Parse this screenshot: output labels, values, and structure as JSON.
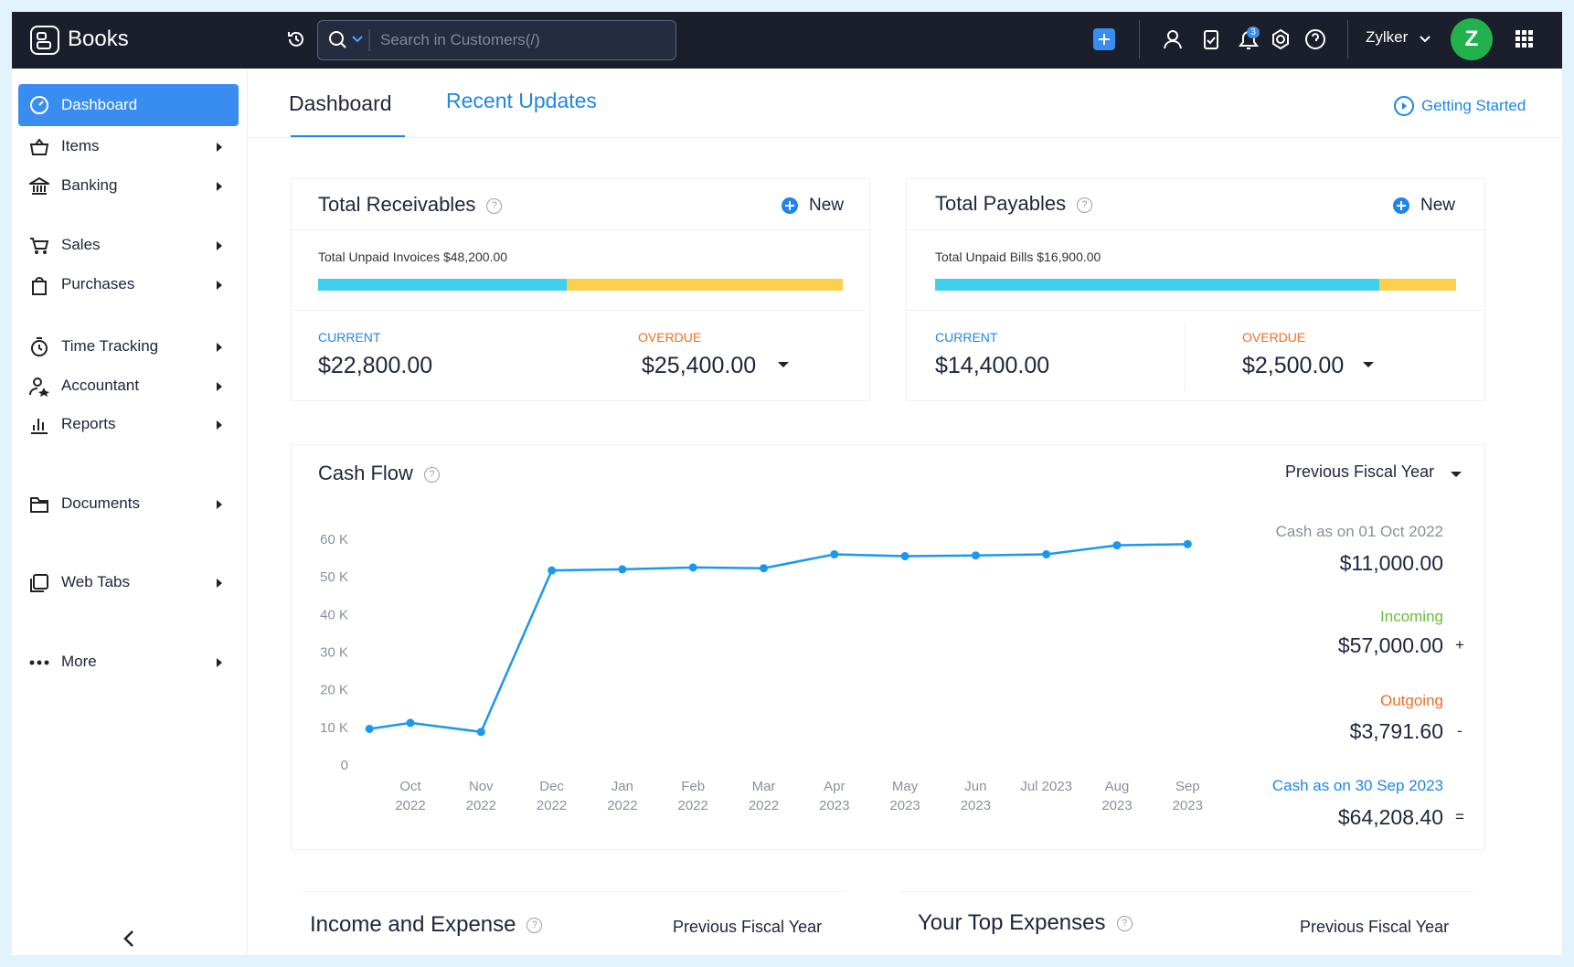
{
  "header": {
    "brand": "Books",
    "search_placeholder": "Search in Customers(/)",
    "badge": "3",
    "org": "Zylker",
    "avatar": "Z"
  },
  "sidebar": {
    "items": [
      "Dashboard",
      "Items",
      "Banking",
      "Sales",
      "Purchases",
      "Time Tracking",
      "Accountant",
      "Reports",
      "Documents",
      "Web Tabs",
      "More"
    ]
  },
  "tabs": {
    "items": [
      "Dashboard",
      "Recent Updates"
    ],
    "getting_started": "Getting Started"
  },
  "receivables": {
    "title": "Total Receivables",
    "new": "New",
    "unpaid": "Total Unpaid Invoices $48,200.00",
    "labels": [
      "CURRENT",
      "OVERDUE"
    ],
    "values": [
      22800,
      25400
    ],
    "value_labels": [
      "$22,800.00",
      "$25,400.00"
    ],
    "colors": [
      "#3fd0ee",
      "#fcd04c"
    ]
  },
  "payables": {
    "title": "Total Payables",
    "new": "New",
    "unpaid": "Total Unpaid Bills $16,900.00",
    "labels": [
      "CURRENT",
      "OVERDUE"
    ],
    "values": [
      14400,
      2500
    ],
    "value_labels": [
      "$14,400.00",
      "$2,500.00"
    ],
    "colors": [
      "#3fd0ee",
      "#fcd04c"
    ]
  },
  "chart_data": {
    "type": "line",
    "title": "Cash Flow",
    "period": "Previous Fiscal Year",
    "categories": [
      null,
      "Oct 2022",
      "Nov 2022",
      "Dec 2022",
      "Jan 2022",
      "Feb 2022",
      "Mar 2022",
      "Apr 2023",
      "May 2023",
      "Jun 2023",
      "Jul 2023",
      "Aug 2023",
      "Sep 2023"
    ],
    "values": [
      9600,
      11200,
      8800,
      51700,
      52000,
      52500,
      52300,
      56000,
      55500,
      55700,
      56000,
      58400,
      58700
    ],
    "color": "#1a98f0",
    "ylim": [
      0,
      60000
    ],
    "yticks": [
      0,
      {
        "value": 10000,
        "label": "10 K"
      },
      {
        "value": 20000,
        "label": "20 K"
      },
      {
        "value": 30000,
        "label": "30 K"
      },
      {
        "value": 40000,
        "label": "40 K"
      },
      {
        "value": 50000,
        "label": "50 K"
      },
      {
        "value": 60000,
        "label": "60 K"
      }
    ],
    "grid": false,
    "summary": {
      "opening_label": "Cash as on 01 Oct 2022",
      "opening": "$11,000.00",
      "incoming_label": "Incoming",
      "incoming": "$57,000.00",
      "incoming_sign": "+",
      "outgoing_label": "Outgoing",
      "outgoing": "$3,791.60",
      "outgoing_sign": "-",
      "closing_label": "Cash as on 30 Sep 2023",
      "closing": "$64,208.40",
      "closing_sign": "="
    }
  },
  "bottom": [
    {
      "title": "Income and Expense",
      "period": "Previous Fiscal Year"
    },
    {
      "title": "Your Top Expenses",
      "period": "Previous Fiscal Year"
    }
  ]
}
